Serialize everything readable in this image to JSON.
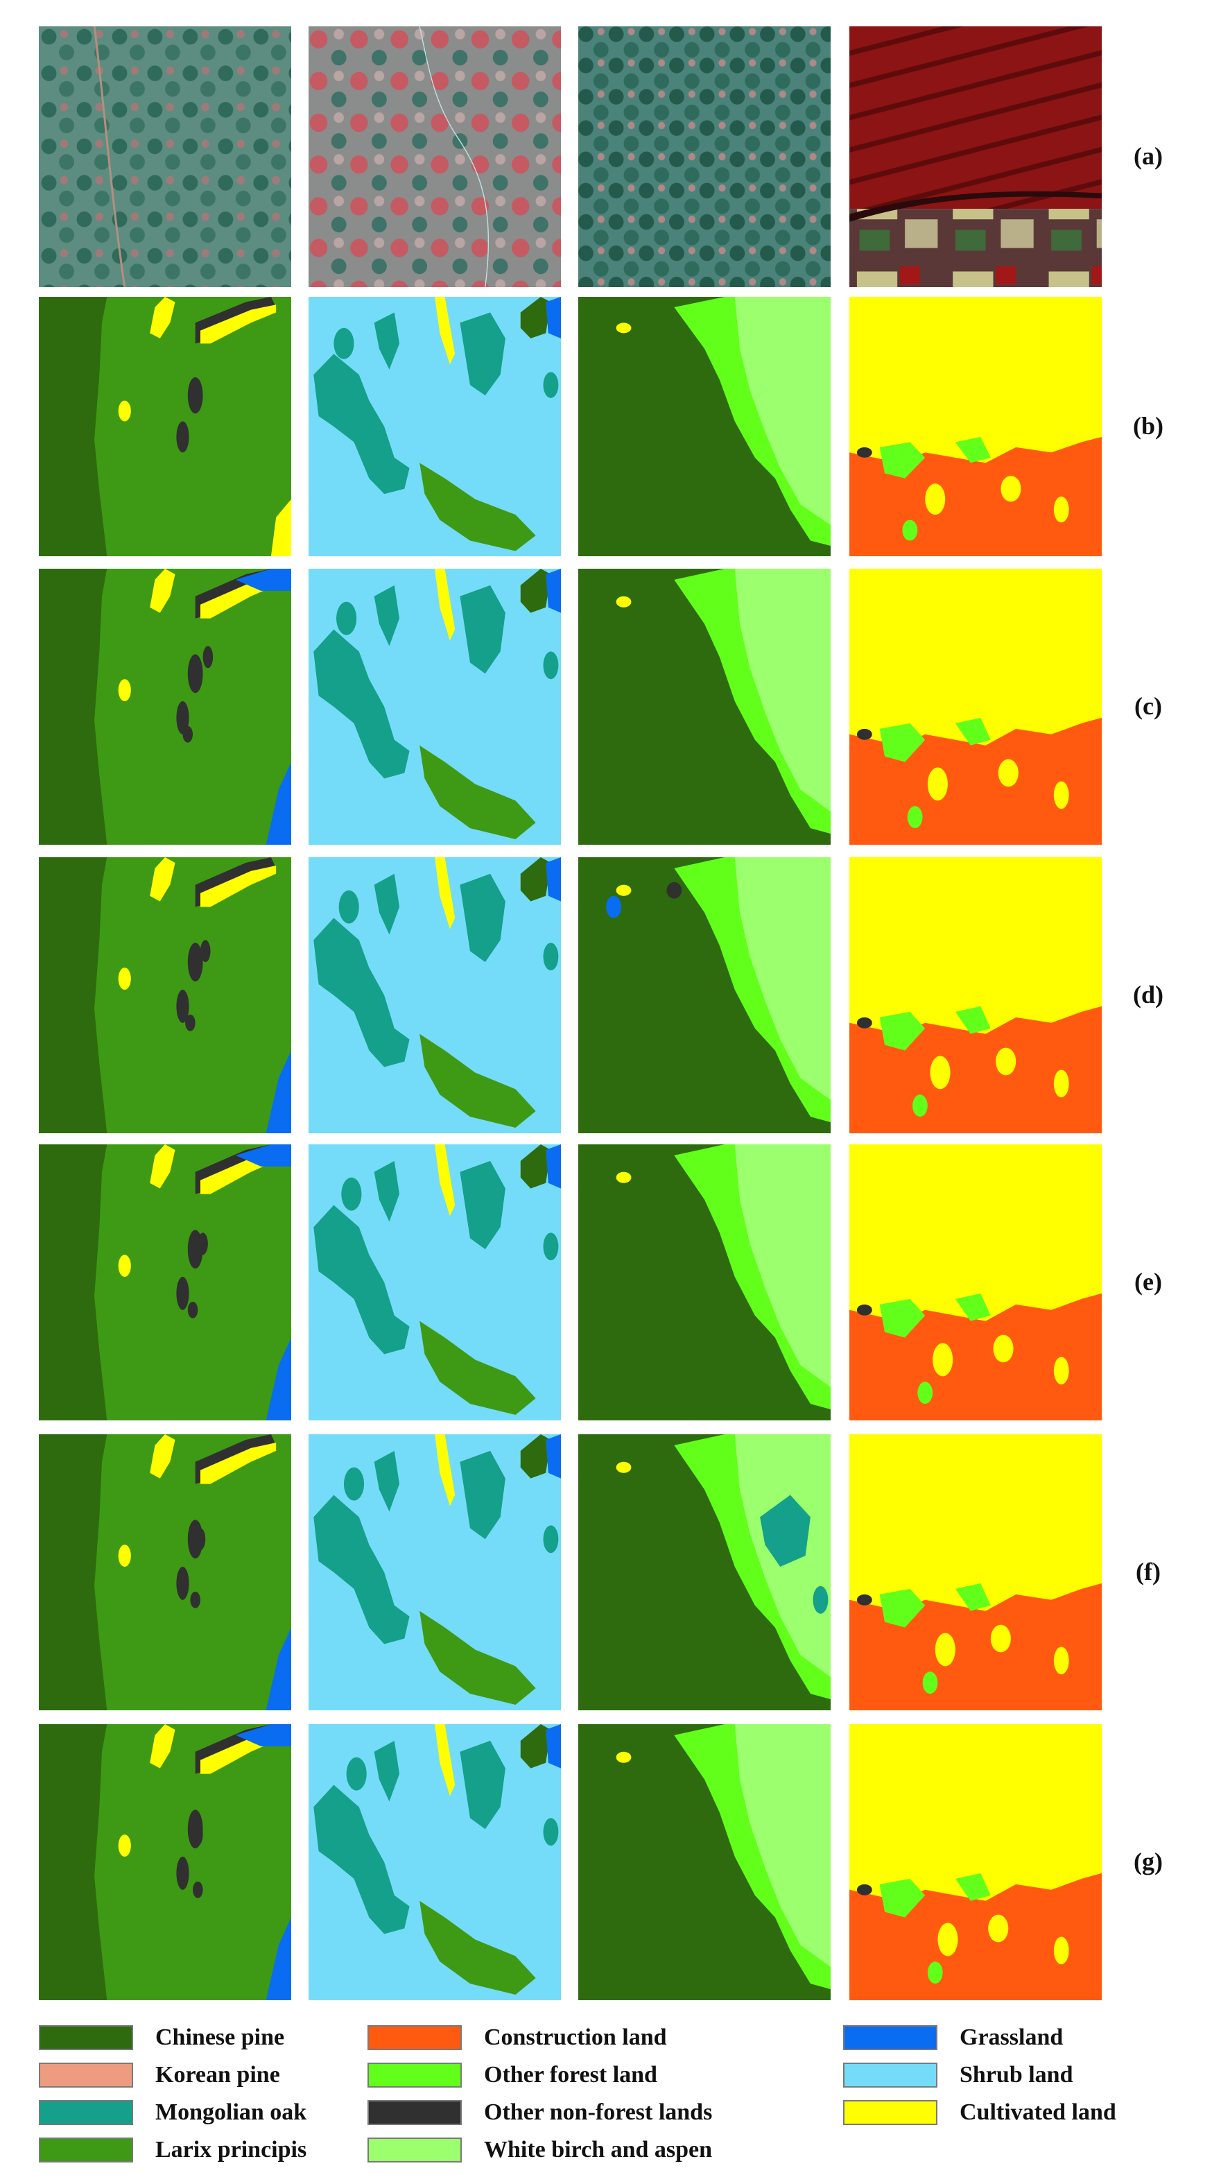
{
  "row_labels": [
    "(a)",
    "(b)",
    "(c)",
    "(d)",
    "(e)",
    "(f)",
    "(g)"
  ],
  "legend": [
    {
      "label": "Chinese pine",
      "color": "#2e6b0e"
    },
    {
      "label": "Korean pine",
      "color": "#ec9d7f"
    },
    {
      "label": "Mongolian oak",
      "color": "#14a08a"
    },
    {
      "label": "Larix principis",
      "color": "#3e9a14"
    },
    {
      "label": "Construction land",
      "color": "#ff5a10"
    },
    {
      "label": "Other forest land",
      "color": "#62ff1a"
    },
    {
      "label": "Other non-forest lands",
      "color": "#303030"
    },
    {
      "label": "White birch and aspen",
      "color": "#9cff6e"
    },
    {
      "label": "Grassland",
      "color": "#0a6cf0"
    },
    {
      "label": "Shrub land",
      "color": "#74dcf8"
    },
    {
      "label": "Cultivated land",
      "color": "#ffff00"
    }
  ]
}
